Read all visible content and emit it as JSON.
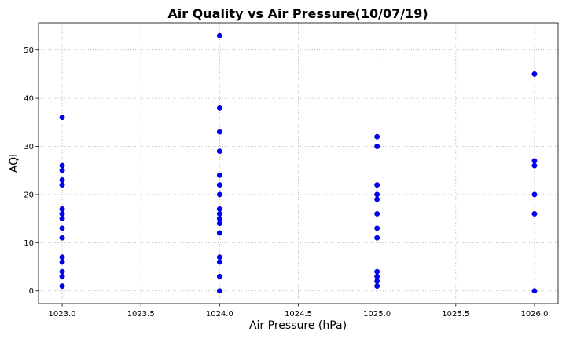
{
  "chart_data": {
    "type": "scatter",
    "title": "Air Quality vs Air Pressure(10/07/19)",
    "xlabel": "Air Pressure (hPa)",
    "ylabel": "AQI",
    "xlim": [
      1022.85,
      1026.15
    ],
    "ylim": [
      -2.65,
      55.65
    ],
    "x_ticks": [
      1023.0,
      1023.5,
      1024.0,
      1024.5,
      1025.0,
      1025.5,
      1026.0
    ],
    "x_tick_labels": [
      "1023.0",
      "1023.5",
      "1024.0",
      "1024.5",
      "1025.0",
      "1025.5",
      "1026.0"
    ],
    "y_ticks": [
      0,
      10,
      20,
      30,
      40,
      50
    ],
    "y_tick_labels": [
      "0",
      "10",
      "20",
      "30",
      "40",
      "50"
    ],
    "grid": true,
    "marker_color": "#0000ff",
    "points": [
      {
        "x": 1023.0,
        "y": 36
      },
      {
        "x": 1023.0,
        "y": 26
      },
      {
        "x": 1023.0,
        "y": 25
      },
      {
        "x": 1023.0,
        "y": 23
      },
      {
        "x": 1023.0,
        "y": 22
      },
      {
        "x": 1023.0,
        "y": 17
      },
      {
        "x": 1023.0,
        "y": 16
      },
      {
        "x": 1023.0,
        "y": 15
      },
      {
        "x": 1023.0,
        "y": 13
      },
      {
        "x": 1023.0,
        "y": 11
      },
      {
        "x": 1023.0,
        "y": 7
      },
      {
        "x": 1023.0,
        "y": 6
      },
      {
        "x": 1023.0,
        "y": 4
      },
      {
        "x": 1023.0,
        "y": 3
      },
      {
        "x": 1023.0,
        "y": 1
      },
      {
        "x": 1024.0,
        "y": 53
      },
      {
        "x": 1024.0,
        "y": 38
      },
      {
        "x": 1024.0,
        "y": 33
      },
      {
        "x": 1024.0,
        "y": 29
      },
      {
        "x": 1024.0,
        "y": 24
      },
      {
        "x": 1024.0,
        "y": 22
      },
      {
        "x": 1024.0,
        "y": 20
      },
      {
        "x": 1024.0,
        "y": 17
      },
      {
        "x": 1024.0,
        "y": 16
      },
      {
        "x": 1024.0,
        "y": 15
      },
      {
        "x": 1024.0,
        "y": 14
      },
      {
        "x": 1024.0,
        "y": 12
      },
      {
        "x": 1024.0,
        "y": 7
      },
      {
        "x": 1024.0,
        "y": 6
      },
      {
        "x": 1024.0,
        "y": 3
      },
      {
        "x": 1024.0,
        "y": 0
      },
      {
        "x": 1025.0,
        "y": 32
      },
      {
        "x": 1025.0,
        "y": 30
      },
      {
        "x": 1025.0,
        "y": 22
      },
      {
        "x": 1025.0,
        "y": 20
      },
      {
        "x": 1025.0,
        "y": 19
      },
      {
        "x": 1025.0,
        "y": 16
      },
      {
        "x": 1025.0,
        "y": 13
      },
      {
        "x": 1025.0,
        "y": 11
      },
      {
        "x": 1025.0,
        "y": 4
      },
      {
        "x": 1025.0,
        "y": 3
      },
      {
        "x": 1025.0,
        "y": 2
      },
      {
        "x": 1025.0,
        "y": 1
      },
      {
        "x": 1026.0,
        "y": 45
      },
      {
        "x": 1026.0,
        "y": 27
      },
      {
        "x": 1026.0,
        "y": 26
      },
      {
        "x": 1026.0,
        "y": 20
      },
      {
        "x": 1026.0,
        "y": 16
      },
      {
        "x": 1026.0,
        "y": 0
      }
    ]
  }
}
